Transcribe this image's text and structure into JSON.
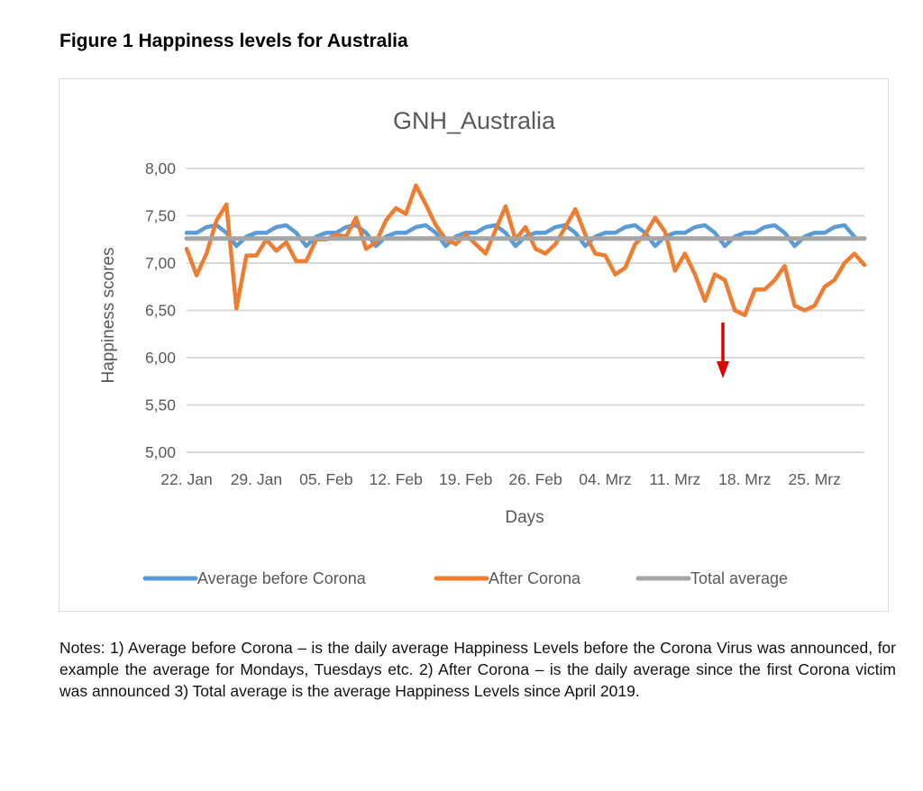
{
  "figure_title": "Figure 1 Happiness levels for Australia",
  "notes": "Notes: 1) Average before Corona – is the daily average Happiness Levels before the Corona Virus was announced, for example the average for Mondays, Tuesdays etc. 2) After Corona – is the daily average since the first Corona victim was announced 3) Total average is the average Happiness Levels since April 2019.",
  "chart_data": {
    "type": "line",
    "title": "GNH_Australia",
    "xlabel": "Days",
    "ylabel": "Happiness scores",
    "ylim": [
      5.0,
      8.0
    ],
    "y_ticks": [
      "5,00",
      "5,50",
      "6,00",
      "6,50",
      "7,00",
      "7,50",
      "8,00"
    ],
    "x_tick_labels": [
      "22. Jan",
      "29. Jan",
      "05. Feb",
      "12. Feb",
      "19. Feb",
      "26. Feb",
      "04. Mrz",
      "11. Mrz",
      "18. Mrz",
      "25. Mrz"
    ],
    "grid": true,
    "legend": "bottom",
    "colors": {
      "before": "#5b9bd5",
      "after": "#ed7d31",
      "total": "#a5a5a5",
      "arrow": "#e00000",
      "grid": "#d9d9d9"
    },
    "series": [
      {
        "name": "Average before Corona",
        "values": [
          7.32,
          7.32,
          7.38,
          7.4,
          7.32,
          7.18,
          7.28,
          7.32,
          7.32,
          7.38,
          7.4,
          7.32,
          7.18,
          7.28,
          7.32,
          7.32,
          7.38,
          7.4,
          7.32,
          7.18,
          7.28,
          7.32,
          7.32,
          7.38,
          7.4,
          7.32,
          7.18,
          7.28,
          7.32,
          7.32,
          7.38,
          7.4,
          7.32,
          7.18,
          7.28,
          7.32,
          7.32,
          7.38,
          7.4,
          7.32,
          7.18,
          7.28,
          7.32,
          7.32,
          7.38,
          7.4,
          7.32,
          7.18,
          7.28,
          7.32,
          7.32,
          7.38,
          7.4,
          7.32,
          7.18,
          7.28,
          7.32,
          7.32,
          7.38,
          7.4,
          7.32,
          7.18,
          7.28,
          7.32,
          7.32,
          7.38,
          7.4,
          7.28
        ]
      },
      {
        "name": "After Corona",
        "values": [
          7.15,
          6.87,
          7.1,
          7.45,
          7.62,
          6.52,
          7.08,
          7.08,
          7.25,
          7.13,
          7.22,
          7.02,
          7.02,
          7.25,
          7.25,
          7.3,
          7.28,
          7.48,
          7.15,
          7.22,
          7.45,
          7.58,
          7.52,
          7.82,
          7.62,
          7.4,
          7.25,
          7.2,
          7.3,
          7.2,
          7.1,
          7.35,
          7.6,
          7.25,
          7.38,
          7.15,
          7.1,
          7.2,
          7.38,
          7.57,
          7.3,
          7.1,
          7.08,
          6.88,
          6.95,
          7.2,
          7.3,
          7.48,
          7.33,
          6.92,
          7.1,
          6.88,
          6.6,
          6.88,
          6.82,
          6.5,
          6.45,
          6.72,
          6.72,
          6.82,
          6.97,
          6.55,
          6.5,
          6.55,
          6.75,
          6.82,
          7.0,
          7.1,
          6.98
        ]
      },
      {
        "name": "Total average",
        "values": [
          7.26,
          7.26
        ]
      }
    ]
  }
}
